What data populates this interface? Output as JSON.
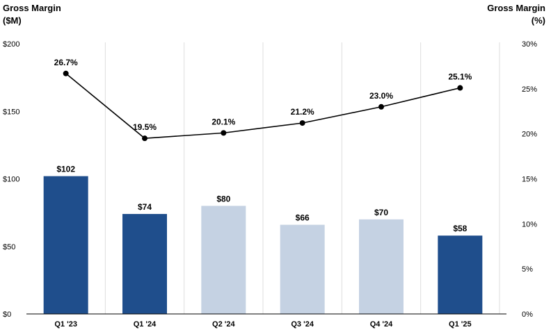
{
  "chart_data": {
    "type": "bar",
    "categories": [
      "Q1 '23",
      "Q1 '24",
      "Q2 '24",
      "Q3 '24",
      "Q4 '24",
      "Q1 '25"
    ],
    "series": [
      {
        "type": "bar",
        "axis": "left",
        "values": [
          102,
          74,
          80,
          66,
          70,
          58
        ],
        "labels": [
          "$102",
          "$74",
          "$80",
          "$66",
          "$70",
          "$58"
        ],
        "bar_colors": [
          "#1f4e8c",
          "#1f4e8c",
          "#c5d2e3",
          "#c5d2e3",
          "#c5d2e3",
          "#1f4e8c"
        ]
      },
      {
        "type": "line",
        "axis": "right",
        "values": [
          26.7,
          19.5,
          20.1,
          21.2,
          23.0,
          25.1
        ],
        "labels": [
          "26.7%",
          "19.5%",
          "20.1%",
          "21.2%",
          "23.0%",
          "25.1%"
        ],
        "color": "#000000"
      }
    ],
    "y_left": {
      "title_lines": [
        "Gross Margin",
        "($M)"
      ],
      "ticks": [
        0,
        50,
        100,
        150,
        200
      ],
      "tick_labels": [
        "$0",
        "$50",
        "$100",
        "$150",
        "$200"
      ],
      "range": [
        0,
        200
      ]
    },
    "y_right": {
      "title_lines": [
        "Gross Margin",
        "(%)"
      ],
      "ticks": [
        0,
        5,
        10,
        15,
        20,
        25,
        30
      ],
      "tick_labels": [
        "0%",
        "5%",
        "10%",
        "15%",
        "20%",
        "25%",
        "30%"
      ],
      "range": [
        0,
        30
      ]
    },
    "grid": "vertical",
    "legend": "none",
    "colors": {
      "dark_bar": "#1f4e8c",
      "light_bar": "#c5d2e3",
      "grid": "#dddddd",
      "axis": "#000000"
    }
  }
}
